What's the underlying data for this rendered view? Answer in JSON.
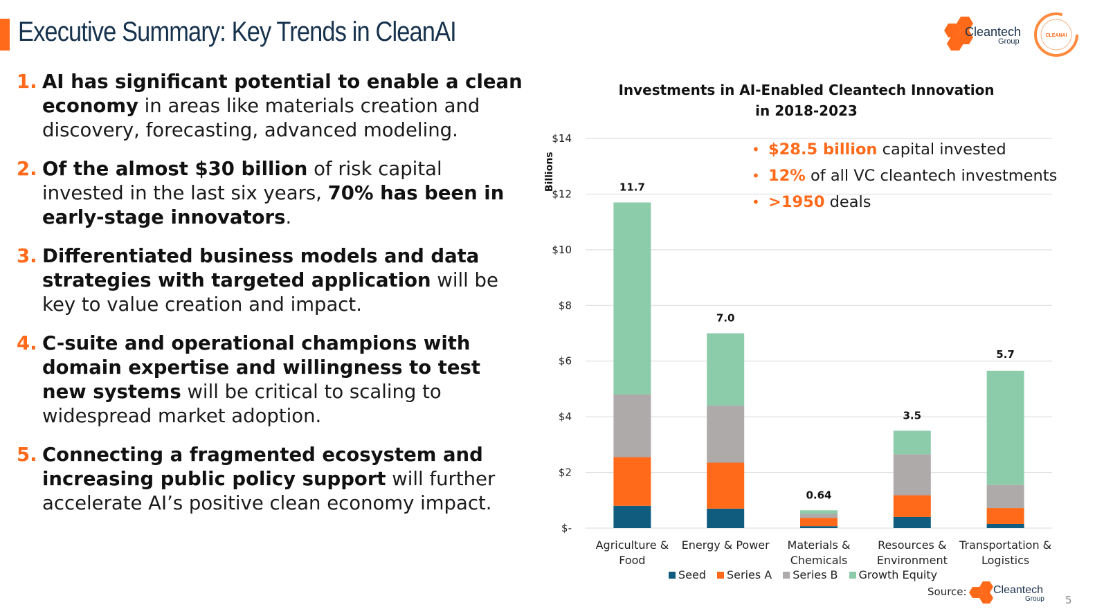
{
  "header": {
    "title": "Executive Summary: Key Trends in CleanAI",
    "logo_text": "Cleantech",
    "logo_sub": "Group",
    "badge_text": "CLEANAI"
  },
  "summary": [
    {
      "num": "1.",
      "bold": "AI has significant potential to enable a clean economy",
      "rest": " in areas like materials creation and discovery, forecasting, advanced modeling."
    },
    {
      "num": "2.",
      "bold": "Of the almost $30 billion",
      "rest": " of risk capital invested in the last six years, ",
      "bold2": "70% has been in early-stage innovators",
      "rest2": "."
    },
    {
      "num": "3.",
      "bold": "Differentiated business models and data strategies with targeted application",
      "rest": " will be key to value creation and impact."
    },
    {
      "num": "4.",
      "bold": "C-suite and operational champions with domain expertise and willingness to test new systems",
      "rest": " will be critical to scaling to widespread market adoption."
    },
    {
      "num": "5.",
      "bold": "Connecting a fragmented ecosystem and increasing public policy support",
      "rest": " will further accelerate AI’s positive clean economy impact."
    }
  ],
  "highlights": [
    {
      "hl": "$28.5 billion",
      "text": " capital invested"
    },
    {
      "hl": "12%",
      "text": " of all VC cleantech investments"
    },
    {
      "hl": ">1950",
      "text": " deals"
    }
  ],
  "footer": {
    "source_label": "Source:",
    "source_logo_text": "Cleantech",
    "source_logo_sub": "Group",
    "page_number": "5"
  },
  "chart_data": {
    "type": "bar",
    "stacked": true,
    "title": "Investments in AI-Enabled Cleantech Innovation in 2018-2023",
    "ylabel": "Billions",
    "xlabel": "",
    "ylim": [
      0,
      14
    ],
    "yticks": [
      0,
      2,
      4,
      6,
      8,
      10,
      12,
      14
    ],
    "ytick_labels": [
      "$-",
      "$2",
      "$4",
      "$6",
      "$8",
      "$10",
      "$12",
      "$14"
    ],
    "categories": [
      [
        "Agriculture &",
        "Food"
      ],
      [
        "Energy & Power"
      ],
      [
        "Materials &",
        "Chemicals"
      ],
      [
        "Resources &",
        "Environment"
      ],
      [
        "Transportation &",
        "Logistics"
      ]
    ],
    "series": [
      {
        "name": "Seed",
        "color": "#0f5c7e",
        "values": [
          0.8,
          0.7,
          0.07,
          0.4,
          0.15
        ]
      },
      {
        "name": "Series A",
        "color": "#ff6a1a",
        "values": [
          1.75,
          1.65,
          0.3,
          0.78,
          0.57
        ]
      },
      {
        "name": "Series B",
        "color": "#aeaaaa",
        "values": [
          2.25,
          2.05,
          0.15,
          1.47,
          0.83
        ]
      },
      {
        "name": "Growth Equity",
        "color": "#8dccab",
        "values": [
          6.9,
          2.6,
          0.12,
          0.85,
          4.1
        ]
      }
    ],
    "totals": [
      11.7,
      7.0,
      0.64,
      3.5,
      5.7
    ],
    "total_labels": [
      "11.7",
      "7.0",
      "0.64",
      "3.5",
      "5.7"
    ],
    "grid": true,
    "legend": "bottom"
  }
}
